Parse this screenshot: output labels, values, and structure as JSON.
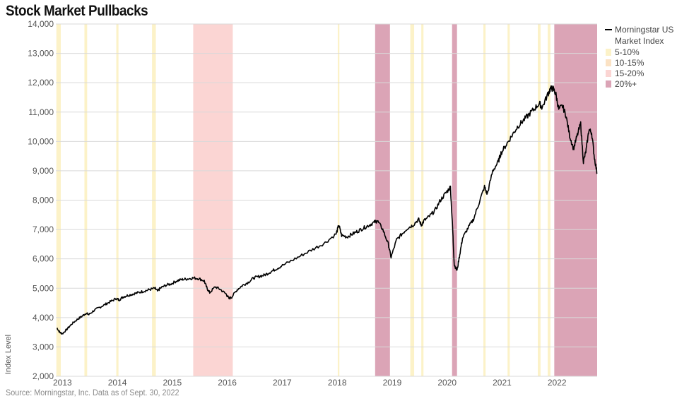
{
  "chart_data": {
    "type": "line",
    "title": "Stock Market Pullbacks",
    "ylabel": "Index Level",
    "source": "Source: Morningstar, Inc. Data as of Sept. 30, 2022",
    "ylim": [
      2000,
      14000
    ],
    "xlim": [
      2012.9,
      2022.75
    ],
    "yticks": [
      "2,000",
      "3,000",
      "4,000",
      "5,000",
      "6,000",
      "7,000",
      "8,000",
      "9,000",
      "10,000",
      "11,000",
      "12,000",
      "13,000",
      "14,000"
    ],
    "xticks": [
      "2013",
      "2014",
      "2015",
      "2016",
      "2017",
      "2018",
      "2019",
      "2020",
      "2021",
      "2022"
    ],
    "grid": true,
    "legend_position": "top-right",
    "series": [
      {
        "name": "Morningstar US Market Index",
        "color": "#000000",
        "x": [
          2012.92,
          2012.97,
          2013.02,
          2013.1,
          2013.2,
          2013.3,
          2013.38,
          2013.45,
          2013.5,
          2013.6,
          2013.7,
          2013.8,
          2013.9,
          2014.0,
          2014.05,
          2014.12,
          2014.2,
          2014.3,
          2014.4,
          2014.5,
          2014.6,
          2014.7,
          2014.75,
          2014.8,
          2014.9,
          2015.0,
          2015.1,
          2015.2,
          2015.3,
          2015.4,
          2015.5,
          2015.6,
          2015.65,
          2015.7,
          2015.8,
          2015.9,
          2016.0,
          2016.05,
          2016.1,
          2016.2,
          2016.3,
          2016.4,
          2016.5,
          2016.6,
          2016.7,
          2016.8,
          2016.9,
          2017.0,
          2017.2,
          2017.4,
          2017.6,
          2017.8,
          2018.0,
          2018.05,
          2018.1,
          2018.2,
          2018.3,
          2018.4,
          2018.5,
          2018.6,
          2018.7,
          2018.75,
          2018.85,
          2018.95,
          2019.0,
          2019.1,
          2019.2,
          2019.3,
          2019.4,
          2019.5,
          2019.55,
          2019.6,
          2019.7,
          2019.8,
          2019.9,
          2020.0,
          2020.08,
          2020.12,
          2020.15,
          2020.2,
          2020.25,
          2020.3,
          2020.4,
          2020.5,
          2020.6,
          2020.7,
          2020.75,
          2020.85,
          2020.95,
          2021.0,
          2021.1,
          2021.2,
          2021.3,
          2021.4,
          2021.5,
          2021.6,
          2021.7,
          2021.75,
          2021.85,
          2021.9,
          2021.95,
          2022.0,
          2022.05,
          2022.12,
          2022.18,
          2022.25,
          2022.32,
          2022.38,
          2022.45,
          2022.5,
          2022.55,
          2022.6,
          2022.65,
          2022.7,
          2022.75
        ],
        "values": [
          3650,
          3500,
          3450,
          3600,
          3800,
          3950,
          4050,
          4150,
          4100,
          4250,
          4350,
          4450,
          4550,
          4650,
          4600,
          4700,
          4750,
          4800,
          4850,
          4900,
          4950,
          5000,
          4900,
          5000,
          5100,
          5150,
          5250,
          5300,
          5320,
          5350,
          5330,
          5250,
          5000,
          4850,
          5050,
          4950,
          4800,
          4650,
          4700,
          4950,
          5100,
          5200,
          5350,
          5400,
          5450,
          5550,
          5650,
          5750,
          5950,
          6150,
          6350,
          6550,
          6850,
          7150,
          6800,
          6750,
          6850,
          6950,
          7050,
          7150,
          7250,
          7300,
          7000,
          6500,
          6050,
          6650,
          6850,
          7050,
          7150,
          7350,
          7150,
          7300,
          7450,
          7650,
          8000,
          8250,
          8450,
          7050,
          5800,
          5600,
          6150,
          6700,
          7050,
          7350,
          7900,
          8450,
          8200,
          9000,
          9300,
          9600,
          9900,
          10200,
          10500,
          10700,
          10900,
          11100,
          11300,
          11150,
          11600,
          11800,
          11800,
          11600,
          11100,
          11200,
          10900,
          10200,
          9750,
          10150,
          10600,
          9300,
          9700,
          10400,
          10300,
          9450,
          8900
        ]
      }
    ],
    "pullback_bands": [
      {
        "category": "5-10%",
        "ranges": [
          [
            2012.91,
            2012.99
          ],
          [
            2013.42,
            2013.47
          ],
          [
            2014.0,
            2014.04
          ],
          [
            2014.65,
            2014.72
          ],
          [
            2018.03,
            2018.06
          ],
          [
            2019.35,
            2019.42
          ],
          [
            2019.55,
            2019.59
          ],
          [
            2020.68,
            2020.72
          ],
          [
            2021.12,
            2021.16
          ],
          [
            2021.67,
            2021.72
          ],
          [
            2021.85,
            2021.9
          ]
        ]
      },
      {
        "category": "15-20%",
        "ranges": [
          [
            2015.4,
            2016.12
          ]
        ]
      },
      {
        "category": "20%+",
        "ranges": [
          [
            2018.71,
            2018.98
          ],
          [
            2020.11,
            2020.2
          ],
          [
            2021.97,
            2022.75
          ]
        ]
      }
    ],
    "legend": [
      {
        "label": "Morningstar US Market Index",
        "line1": "Morningstar US",
        "line2": "Market Index",
        "color": "#000000",
        "kind": "line"
      },
      {
        "label": "5-10%",
        "color": "#fcf2c8",
        "kind": "swatch"
      },
      {
        "label": "10-15%",
        "color": "#fbe2c4",
        "kind": "swatch"
      },
      {
        "label": "15-20%",
        "color": "#fbd5d3",
        "kind": "swatch"
      },
      {
        "label": "20%+",
        "color": "#dba4b6",
        "kind": "swatch"
      }
    ]
  }
}
